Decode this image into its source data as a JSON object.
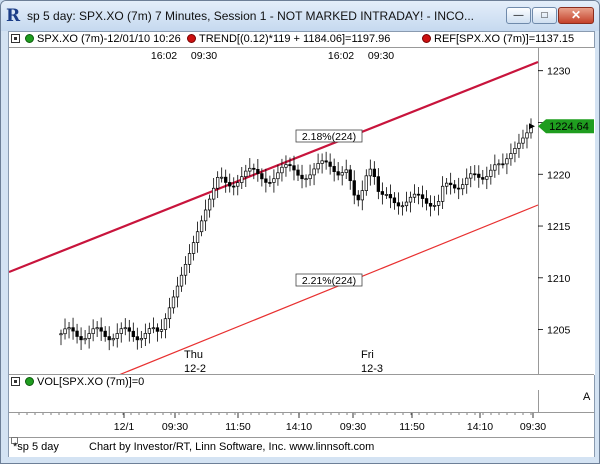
{
  "window": {
    "title": "sp 5 day: SPX.XO (7m) 7 Minutes, Session 1 - NOT MARKED INTRADAY! - INCO...",
    "logo": "R",
    "minimize_glyph": "—",
    "maximize_glyph": "□",
    "close_glyph": "✕"
  },
  "legend": {
    "spx": "SPX.XO (7m)-12/01/10 10:26",
    "trend": "TREND[(0.12)*119 + 1184.06]=1197.96",
    "ref": "REF[SPX.XO (7m)]=1137.15",
    "colors": {
      "green": "#1f9d1f",
      "red": "#cc1111"
    }
  },
  "chart_data": {
    "type": "candlestick",
    "symbol": "SPX.XO (7m)",
    "y_ticks": [
      "1230",
      "1225",
      "1220",
      "1215",
      "1210",
      "1205"
    ],
    "ylim": [
      1201,
      1232
    ],
    "last_price": "1224.64",
    "last_price_value": 1224.64,
    "top_time_labels": [
      "16:02",
      "09:30",
      "16:02",
      "09:30"
    ],
    "channel_upper_label": "2.18%(224)",
    "channel_lower_label": "2.21%(224)",
    "day_labels": [
      {
        "day": "Thu",
        "date": "12-2"
      },
      {
        "day": "Fri",
        "date": "12-3"
      }
    ],
    "x_ticks": [
      "12/1",
      "09:30",
      "11:50",
      "14:10",
      "09:30",
      "11:50",
      "14:10",
      "09:30"
    ],
    "colors": {
      "channel_upper": "#c8143c",
      "channel_lower": "#e83030",
      "price_tag": "#1f9d1f"
    }
  },
  "volume": {
    "label": "VOL[SPX.XO (7m)]=0"
  },
  "axis_marker": "A",
  "status": {
    "tab": "*sp 5 day",
    "credit": "Chart by Investor/RT, Linn Software, Inc. www.linnsoft.com"
  }
}
